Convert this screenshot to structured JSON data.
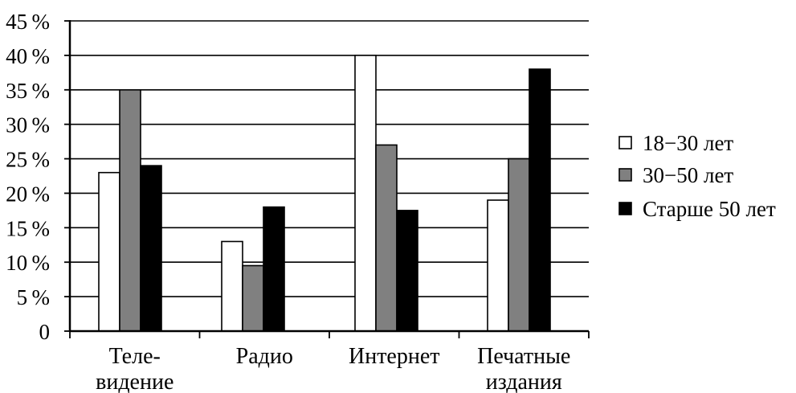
{
  "chart_data": {
    "type": "bar",
    "categories": [
      [
        "Теле-",
        "видение"
      ],
      [
        "Радио"
      ],
      [
        "Интернет"
      ],
      [
        "Печатные",
        "издания"
      ]
    ],
    "series": [
      {
        "name": "18−30 лет",
        "color": "#ffffff",
        "values": [
          23,
          13,
          40,
          19
        ]
      },
      {
        "name": "30−50 лет",
        "color": "#808080",
        "values": [
          35,
          9.5,
          27,
          25
        ]
      },
      {
        "name": "Старше 50 лет",
        "color": "#000000",
        "values": [
          24,
          18,
          17.5,
          38
        ]
      }
    ],
    "y_ticks": [
      "0",
      "5 %",
      "10 %",
      "15 %",
      "20 %",
      "25 %",
      "30 %",
      "35 %",
      "40 %",
      "45 %"
    ],
    "ylim": [
      0,
      45
    ],
    "y_step": 5,
    "grid": true,
    "legend_position": "right",
    "title": "",
    "xlabel": "",
    "ylabel": ""
  }
}
